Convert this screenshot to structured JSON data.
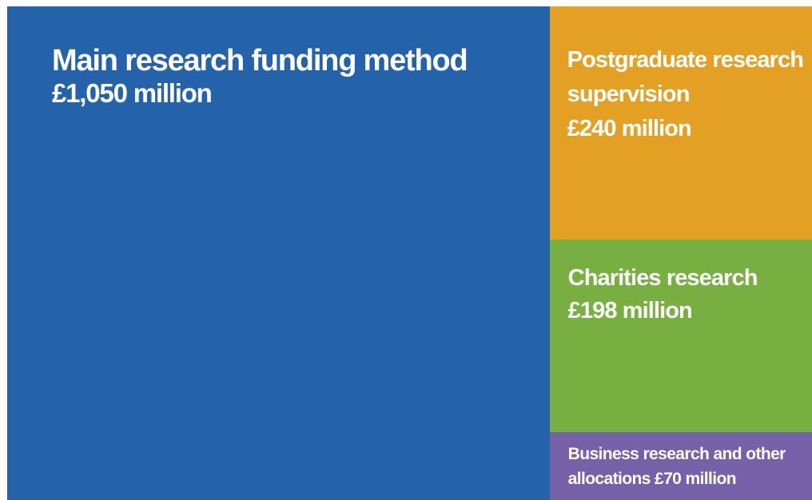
{
  "chart_data": {
    "type": "treemap",
    "categories": [
      "Main research funding method",
      "Postgraduate research supervision",
      "Charities research",
      "Business research and other allocations"
    ],
    "values": [
      1050,
      240,
      198,
      70
    ],
    "value_labels": [
      "£1,050 million",
      "£240 million",
      "£198 million",
      "£70 million"
    ],
    "colors": [
      "#2463aa",
      "#e4a022",
      "#77b041",
      "#7660a8"
    ]
  }
}
